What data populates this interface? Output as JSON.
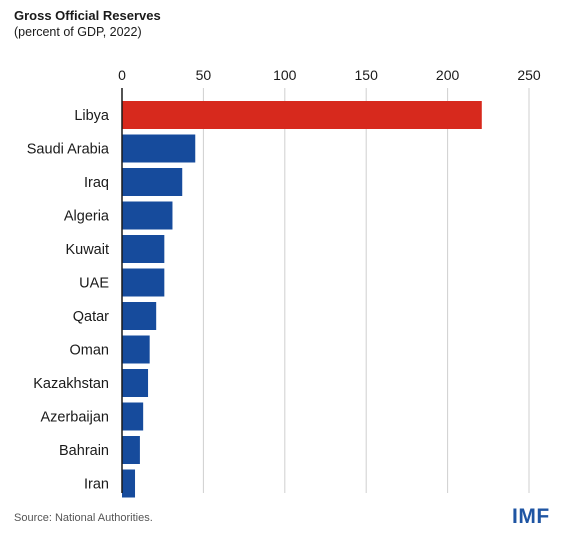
{
  "colors": {
    "highlight": "#d7291d",
    "bar": "#164b9c",
    "grid": "#cfcfcf",
    "axis": "#1a1a1a",
    "text": "#1a1a1a",
    "logo": "#1f55a3"
  },
  "chart_data": {
    "type": "bar",
    "orientation": "horizontal",
    "title": "Gross Official Reserves",
    "subtitle": "(percent of GDP, 2022)",
    "categories": [
      "Libya",
      "Saudi Arabia",
      "Iraq",
      "Algeria",
      "Kuwait",
      "UAE",
      "Qatar",
      "Oman",
      "Kazakhstan",
      "Azerbaijan",
      "Bahrain",
      "Iran"
    ],
    "values": [
      221,
      45,
      37,
      31,
      26,
      26,
      21,
      17,
      16,
      13,
      11,
      8
    ],
    "highlight_category": "Libya",
    "xlim": [
      0,
      250
    ],
    "xticks": [
      0,
      50,
      100,
      150,
      200,
      250
    ],
    "xaxis_position": "top",
    "grid": true,
    "legend": "none"
  },
  "source": "Source: National Authorities.",
  "logo_text": "IMF"
}
